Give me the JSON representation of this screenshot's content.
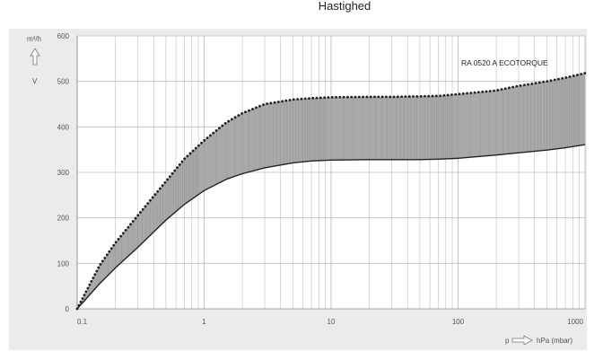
{
  "title": "Hastighed",
  "chart_data": {
    "type": "area",
    "title": "Hastighed",
    "ylabel": "m³/h",
    "xlabel": "p",
    "xunit": "hPa (mbar)",
    "x_scale": "log",
    "xlim": [
      0.1,
      1000
    ],
    "ylim": [
      0,
      600
    ],
    "x_ticks": [
      "0.1",
      "1",
      "10",
      "100",
      "1000"
    ],
    "y_ticks": [
      "0",
      "100",
      "200",
      "300",
      "400",
      "500",
      "600"
    ],
    "annotation": "RA 0520 A ECOTORQUE",
    "grid": true,
    "series": [
      {
        "role": "upper",
        "style": "dotted",
        "x": [
          0.1,
          0.15,
          0.2,
          0.3,
          0.5,
          0.7,
          1,
          1.5,
          2,
          3,
          5,
          7,
          10,
          20,
          30,
          50,
          70,
          100,
          200,
          300,
          500,
          700,
          1000
        ],
        "y": [
          0,
          95,
          145,
          205,
          280,
          330,
          370,
          410,
          430,
          450,
          460,
          463,
          465,
          466,
          466,
          467,
          468,
          472,
          480,
          490,
          500,
          508,
          518
        ]
      },
      {
        "role": "lower",
        "style": "solid",
        "x": [
          0.1,
          0.15,
          0.2,
          0.3,
          0.5,
          0.7,
          1,
          1.5,
          2,
          3,
          5,
          7,
          10,
          20,
          30,
          50,
          70,
          100,
          200,
          300,
          500,
          700,
          1000
        ],
        "y": [
          0,
          55,
          90,
          135,
          195,
          230,
          260,
          285,
          297,
          310,
          321,
          325,
          327,
          328,
          328,
          328,
          329,
          331,
          338,
          343,
          349,
          354,
          361
        ]
      }
    ],
    "colors": {
      "fill": "#a9a9a9",
      "line": "#222222",
      "grid": "#bdbdbd",
      "axis_text": "#555555",
      "background": "#ffffff"
    }
  }
}
